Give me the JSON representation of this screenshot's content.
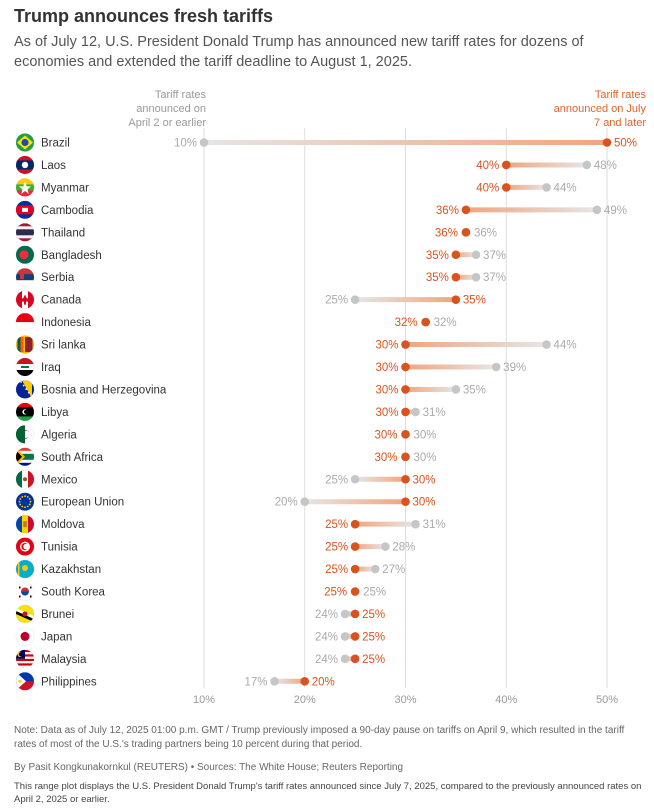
{
  "header": {
    "title": "Trump announces fresh tariffs",
    "subtitle": "As of July 12, U.S. President Donald Trump has announced new tariff rates for dozens of economies and extended the tariff deadline to August 1, 2025."
  },
  "legend": {
    "old_label": "Tariff rates announced on April 2 or earlier",
    "new_label": "Tariff rates announced on July 7 and later"
  },
  "colors": {
    "new": "#d9531e",
    "old": "#c6c6c6",
    "grid": "#dddddd"
  },
  "chart_data": {
    "type": "dumbbell",
    "xlim": [
      5,
      52
    ],
    "xticks": [
      "10%",
      "20%",
      "30%",
      "40%",
      "50%"
    ],
    "xtick_values": [
      10,
      20,
      30,
      40,
      50
    ],
    "series": [
      {
        "name": "Tariff rates announced on April 2 or earlier",
        "key": "old"
      },
      {
        "name": "Tariff rates announced on July 7 and later",
        "key": "new"
      }
    ],
    "rows": [
      {
        "country": "Brazil",
        "flag": "brazil-flag-icon",
        "old": 10,
        "new": 50,
        "old_label": "10%",
        "new_label": "50%"
      },
      {
        "country": "Laos",
        "flag": "laos-flag-icon",
        "old": 48,
        "new": 40,
        "old_label": "48%",
        "new_label": "40%"
      },
      {
        "country": "Myanmar",
        "flag": "myanmar-flag-icon",
        "old": 44,
        "new": 40,
        "old_label": "44%",
        "new_label": "40%"
      },
      {
        "country": "Cambodia",
        "flag": "cambodia-flag-icon",
        "old": 49,
        "new": 36,
        "old_label": "49%",
        "new_label": "36%"
      },
      {
        "country": "Thailand",
        "flag": "thailand-flag-icon",
        "old": 36,
        "new": 36,
        "old_label": "36%",
        "new_label": "36%"
      },
      {
        "country": "Bangladesh",
        "flag": "bangladesh-flag-icon",
        "old": 37,
        "new": 35,
        "old_label": "37%",
        "new_label": "35%"
      },
      {
        "country": "Serbia",
        "flag": "serbia-flag-icon",
        "old": 37,
        "new": 35,
        "old_label": "37%",
        "new_label": "35%"
      },
      {
        "country": "Canada",
        "flag": "canada-flag-icon",
        "old": 25,
        "new": 35,
        "old_label": "25%",
        "new_label": "35%"
      },
      {
        "country": "Indonesia",
        "flag": "indonesia-flag-icon",
        "old": 32,
        "new": 32,
        "old_label": "32%",
        "new_label": "32%"
      },
      {
        "country": "Sri lanka",
        "flag": "sri-lanka-flag-icon",
        "old": 44,
        "new": 30,
        "old_label": "44%",
        "new_label": "30%"
      },
      {
        "country": "Iraq",
        "flag": "iraq-flag-icon",
        "old": 39,
        "new": 30,
        "old_label": "39%",
        "new_label": "30%"
      },
      {
        "country": "Bosnia and Herzegovina",
        "flag": "bosnia-flag-icon",
        "old": 35,
        "new": 30,
        "old_label": "35%",
        "new_label": "30%"
      },
      {
        "country": "Libya",
        "flag": "libya-flag-icon",
        "old": 31,
        "new": 30,
        "old_label": "31%",
        "new_label": "30%"
      },
      {
        "country": "Algeria",
        "flag": "algeria-flag-icon",
        "old": 30,
        "new": 30,
        "old_label": "30%",
        "new_label": "30%"
      },
      {
        "country": "South Africa",
        "flag": "south-africa-flag-icon",
        "old": 30,
        "new": 30,
        "old_label": "30%",
        "new_label": "30%"
      },
      {
        "country": "Mexico",
        "flag": "mexico-flag-icon",
        "old": 25,
        "new": 30,
        "old_label": "25%",
        "new_label": "30%"
      },
      {
        "country": "European Union",
        "flag": "eu-flag-icon",
        "old": 20,
        "new": 30,
        "old_label": "20%",
        "new_label": "30%"
      },
      {
        "country": "Moldova",
        "flag": "moldova-flag-icon",
        "old": 31,
        "new": 25,
        "old_label": "31%",
        "new_label": "25%"
      },
      {
        "country": "Tunisia",
        "flag": "tunisia-flag-icon",
        "old": 28,
        "new": 25,
        "old_label": "28%",
        "new_label": "25%"
      },
      {
        "country": "Kazakhstan",
        "flag": "kazakhstan-flag-icon",
        "old": 27,
        "new": 25,
        "old_label": "27%",
        "new_label": "25%"
      },
      {
        "country": "South Korea",
        "flag": "south-korea-flag-icon",
        "old": 25,
        "new": 25,
        "old_label": "25%",
        "new_label": "25%"
      },
      {
        "country": "Brunei",
        "flag": "brunei-flag-icon",
        "old": 24,
        "new": 25,
        "old_label": "24%",
        "new_label": "25%"
      },
      {
        "country": "Japan",
        "flag": "japan-flag-icon",
        "old": 24,
        "new": 25,
        "old_label": "24%",
        "new_label": "25%"
      },
      {
        "country": "Malaysia",
        "flag": "malaysia-flag-icon",
        "old": 24,
        "new": 25,
        "old_label": "24%",
        "new_label": "25%"
      },
      {
        "country": "Philippines",
        "flag": "philippines-flag-icon",
        "old": 17,
        "new": 20,
        "old_label": "17%",
        "new_label": "20%"
      }
    ]
  },
  "footer": {
    "note": "Note: Data as of July 12, 2025 01:00 p.m. GMT / Trump previously imposed a 90-day pause on tariffs on April 9, which resulted in the tariff rates of most of the U.S.'s trading partners being 10 percent during that period.",
    "byline": "By Pasit Kongkunakornkul (REUTERS) • Sources: The White House; Reuters Reporting",
    "description": "This range plot displays the U.S. President Donald Trump's tariff rates announced since July 7, 2025, compared to the previously announced rates on April 2, 2025 or earlier."
  }
}
